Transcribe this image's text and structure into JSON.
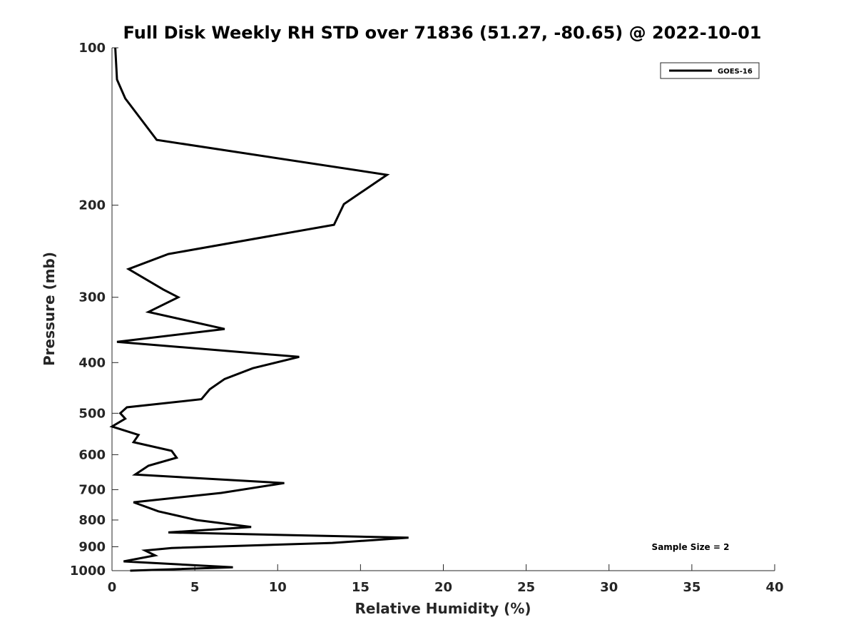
{
  "chart_data": {
    "type": "line",
    "title": "Full Disk Weekly RH STD over 71836 (51.27, -80.65) @ 2022-10-01",
    "xlabel": "Relative Humidity (%)",
    "ylabel": "Pressure (mb)",
    "xlim": [
      0,
      40
    ],
    "ylim": [
      100,
      1000
    ],
    "y_scale": "log",
    "y_reversed": true,
    "x_ticks": [
      0,
      5,
      10,
      15,
      20,
      25,
      30,
      35,
      40
    ],
    "x_tick_labels": [
      "0",
      "5",
      "10",
      "15",
      "20",
      "25",
      "30",
      "35",
      "40"
    ],
    "y_ticks": [
      100,
      200,
      300,
      400,
      500,
      600,
      700,
      800,
      900,
      1000
    ],
    "y_tick_labels": [
      "100",
      "200",
      "300",
      "400",
      "500",
      "600",
      "700",
      "800",
      "900",
      "1000"
    ],
    "grid": false,
    "legend_position": "top-right",
    "annotation": "Sample Size = 2",
    "line_color": "#000000",
    "series": [
      {
        "name": "GOES-16",
        "x": [
          0.2,
          0.3,
          0.8,
          2.7,
          16.6,
          14.0,
          13.4,
          3.4,
          1.0,
          3.1,
          4.0,
          2.2,
          6.8,
          0.3,
          11.3,
          8.5,
          6.8,
          5.9,
          5.4,
          0.9,
          0.5,
          0.8,
          0.0,
          1.6,
          1.3,
          3.6,
          3.9,
          2.2,
          1.4,
          10.4,
          6.6,
          1.3,
          2.8,
          5.1,
          8.4,
          3.4,
          17.9,
          13.3,
          3.6,
          2.0,
          2.6,
          0.7,
          7.3,
          1.1
        ],
        "y": [
          100,
          115,
          125,
          150,
          175,
          199,
          218,
          248,
          265,
          290,
          300,
          320,
          345,
          365,
          390,
          410,
          430,
          450,
          470,
          487,
          500,
          512,
          530,
          550,
          568,
          590,
          608,
          630,
          655,
          680,
          710,
          740,
          770,
          800,
          825,
          845,
          865,
          885,
          905,
          915,
          935,
          960,
          985,
          1000
        ]
      }
    ]
  }
}
